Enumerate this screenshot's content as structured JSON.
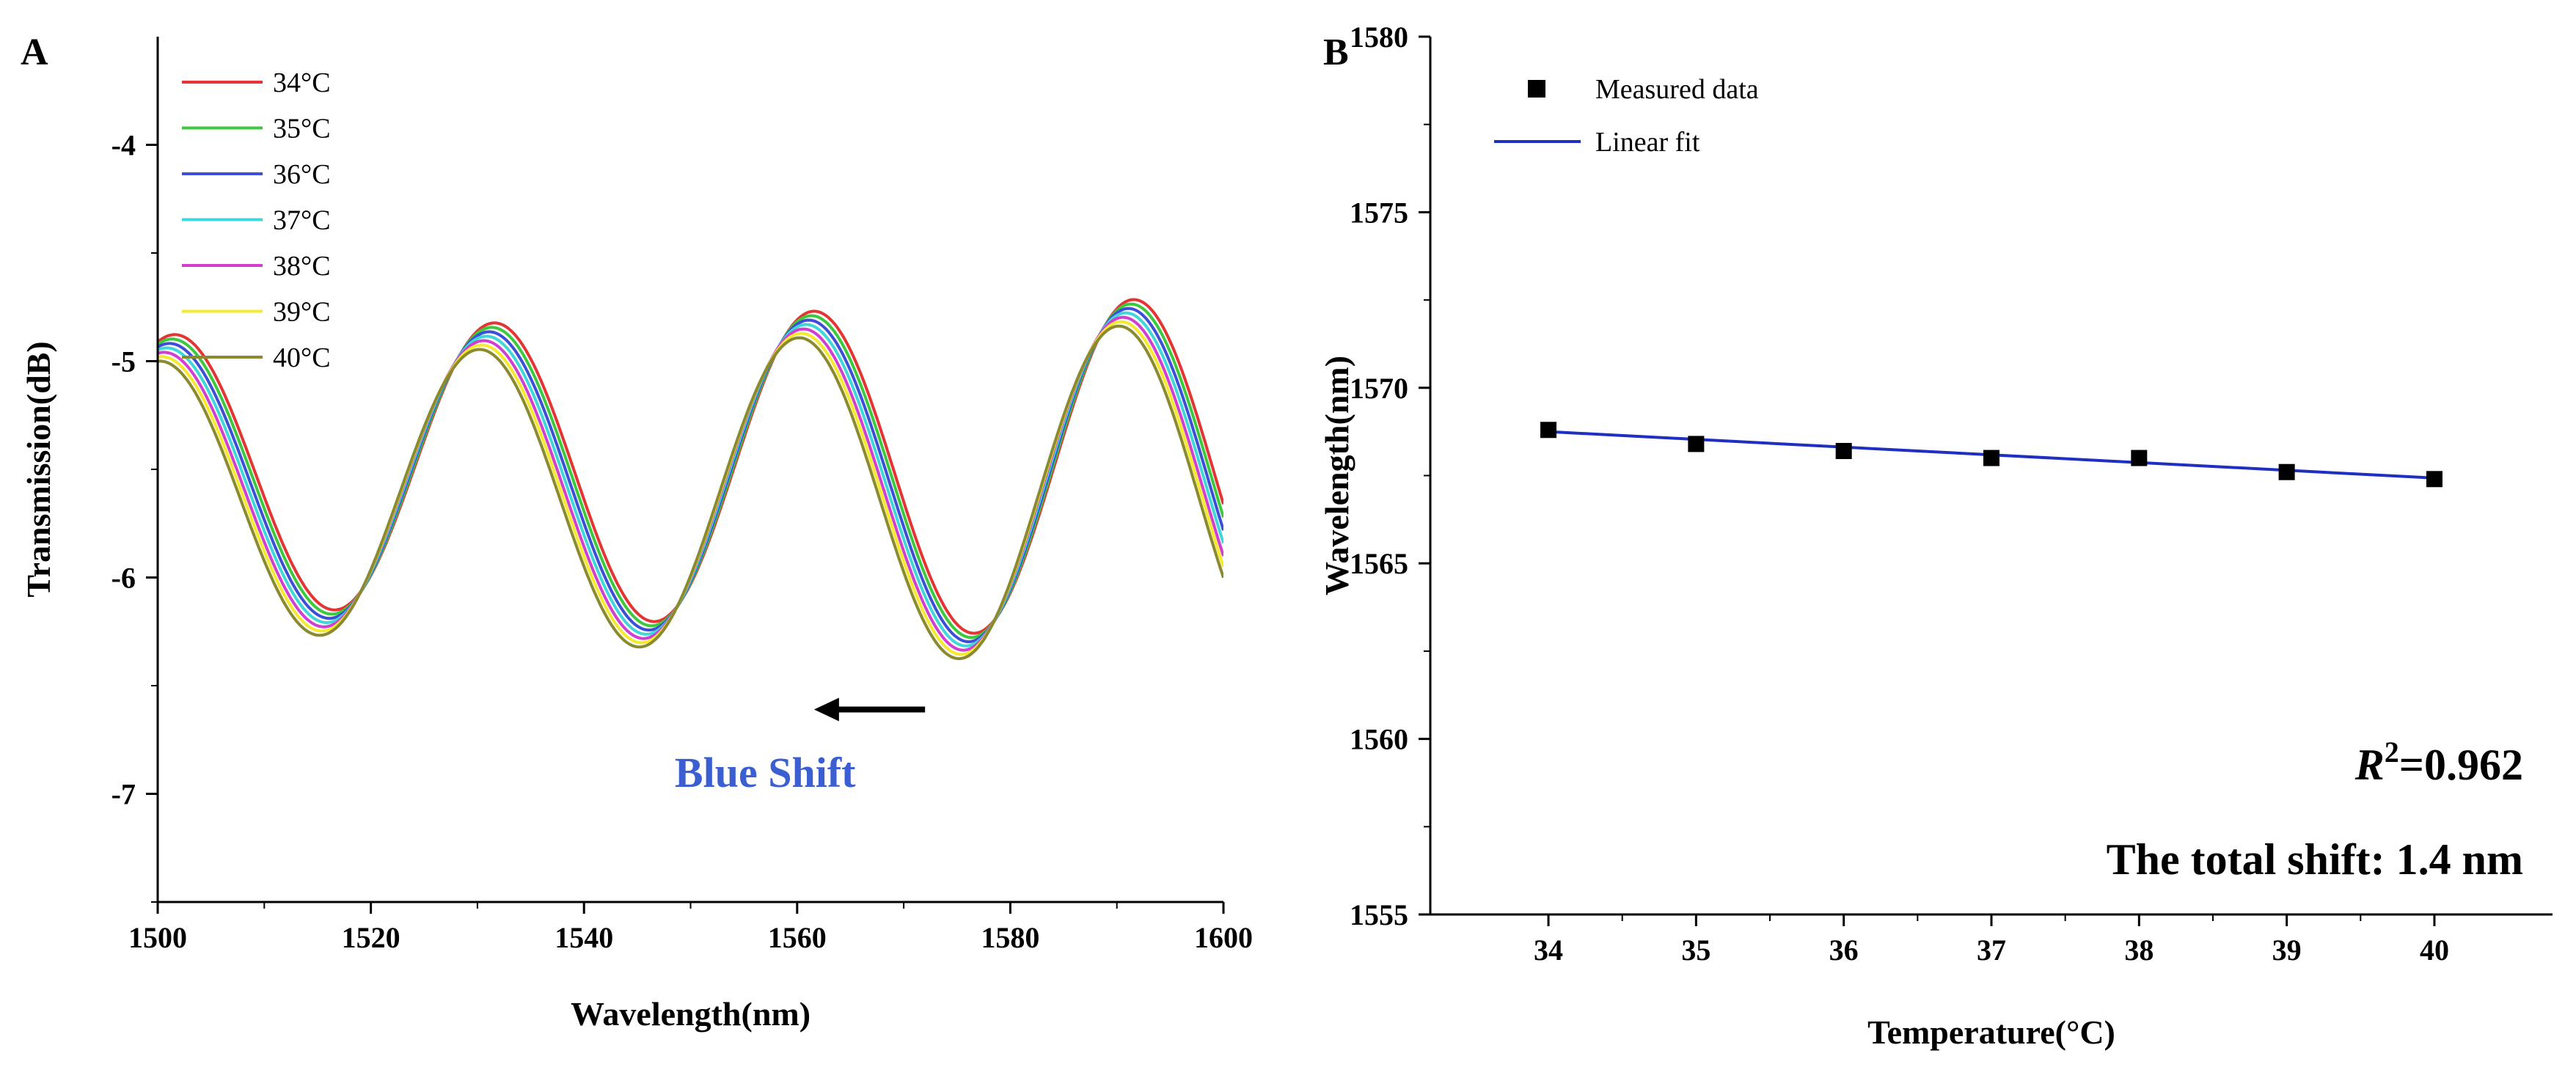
{
  "panels": {
    "a": {
      "label": "A"
    },
    "b": {
      "label": "B"
    }
  },
  "chart_data": [
    {
      "type": "line",
      "panel": "A",
      "xlabel": "Wavelength(nm)",
      "ylabel": "Transmission(dB)",
      "xlim": [
        1500,
        1600
      ],
      "ylim": [
        -7.5,
        -3.5
      ],
      "xticks": [
        1500,
        1520,
        1540,
        1560,
        1580,
        1600
      ],
      "yticks": [
        -7,
        -6,
        -5,
        -4
      ],
      "grid": false,
      "legend_position": "top-left",
      "model": {
        "base_center": -5.5,
        "base_amplitude": 0.62,
        "amplitude_slope_per_nm": 0.0018,
        "base_phase_rad": 1.25,
        "period_nm": 30
      },
      "series": [
        {
          "name": "34°C",
          "color": "#e53434",
          "shift_nm": 0.0,
          "center_offset_db": 0.0
        },
        {
          "name": "35°C",
          "color": "#3dc93d",
          "shift_nm": -0.25,
          "center_offset_db": -0.02
        },
        {
          "name": "36°C",
          "color": "#3c4fd6",
          "shift_nm": -0.5,
          "center_offset_db": -0.04
        },
        {
          "name": "37°C",
          "color": "#3fd7d7",
          "shift_nm": -0.75,
          "center_offset_db": -0.06
        },
        {
          "name": "38°C",
          "color": "#d13fd1",
          "shift_nm": -1.0,
          "center_offset_db": -0.08
        },
        {
          "name": "39°C",
          "color": "#f5ea2e",
          "shift_nm": -1.2,
          "center_offset_db": -0.1
        },
        {
          "name": "40°C",
          "color": "#8a8a2e",
          "shift_nm": -1.4,
          "center_offset_db": -0.12
        }
      ],
      "annotation": {
        "text": "Blue Shift",
        "color": "#3b5fd0",
        "arrow_from_x": 1572,
        "arrow_to_x": 1562,
        "arrow_y": -6.61,
        "text_x": 1557,
        "text_y": -6.9
      }
    },
    {
      "type": "scatter",
      "panel": "B",
      "xlabel": "Temperature(°C)",
      "ylabel": "Wavelength(nm)",
      "xlim": [
        33.2,
        40.8
      ],
      "ylim": [
        1555,
        1580
      ],
      "xticks": [
        34,
        35,
        36,
        37,
        38,
        39,
        40
      ],
      "yticks": [
        1555,
        1560,
        1565,
        1570,
        1575,
        1580
      ],
      "grid": false,
      "legend_position": "top-left",
      "x": [
        34,
        35,
        36,
        37,
        38,
        39,
        40
      ],
      "series": [
        {
          "name": "Measured data",
          "marker": "square",
          "color": "#000000",
          "values": [
            1568.8,
            1568.4,
            1568.2,
            1568.0,
            1568.0,
            1567.6,
            1567.4
          ]
        },
        {
          "name": "Linear fit",
          "type": "line",
          "color": "#1f2fc0",
          "slope": -0.22,
          "intercept_at_34": 1568.75
        }
      ],
      "annotations": {
        "r2_prefix": "R",
        "r2_sup": "2",
        "r2_value": "=0.962",
        "shift_text": "The total shift: 1.4 nm"
      }
    }
  ]
}
